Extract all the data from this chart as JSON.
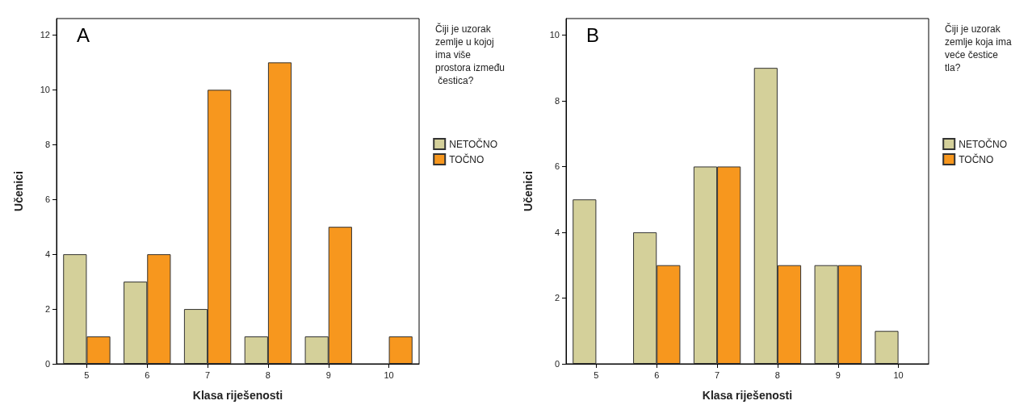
{
  "chart_data": [
    {
      "type": "bar",
      "title": "A",
      "xlabel": "Klasa riješenosti",
      "ylabel": "Učenici",
      "legend_title": "Čiji je uzorak zemlje u kojoj ima više prostora između čestica?",
      "categories": [
        "5",
        "6",
        "7",
        "8",
        "9",
        "10"
      ],
      "series": [
        {
          "name": "NETOČNO",
          "color": "#d4d09a",
          "values": [
            4,
            3,
            2,
            1,
            1,
            null
          ]
        },
        {
          "name": "TOČNO",
          "color": "#f7971e",
          "values": [
            1,
            4,
            10,
            11,
            5,
            1
          ]
        }
      ],
      "ylim": [
        0,
        12.6
      ],
      "yticks": [
        0,
        2,
        4,
        6,
        8,
        10,
        12
      ],
      "grid": false,
      "legend": "right"
    },
    {
      "type": "bar",
      "title": "B",
      "xlabel": "Klasa riješenosti",
      "ylabel": "Učenici",
      "legend_title": "Čiji je uzorak zemlje koja ima veće čestice tla?",
      "categories": [
        "5",
        "6",
        "7",
        "8",
        "9",
        "10"
      ],
      "series": [
        {
          "name": "NETOČNO",
          "color": "#d4d09a",
          "values": [
            5,
            4,
            6,
            9,
            3,
            1
          ]
        },
        {
          "name": "TOČNO",
          "color": "#f7971e",
          "values": [
            null,
            3,
            6,
            3,
            3,
            null
          ]
        }
      ],
      "ylim": [
        0,
        10.5
      ],
      "yticks": [
        0,
        2,
        4,
        6,
        8,
        10
      ],
      "grid": false,
      "legend": "right"
    }
  ]
}
